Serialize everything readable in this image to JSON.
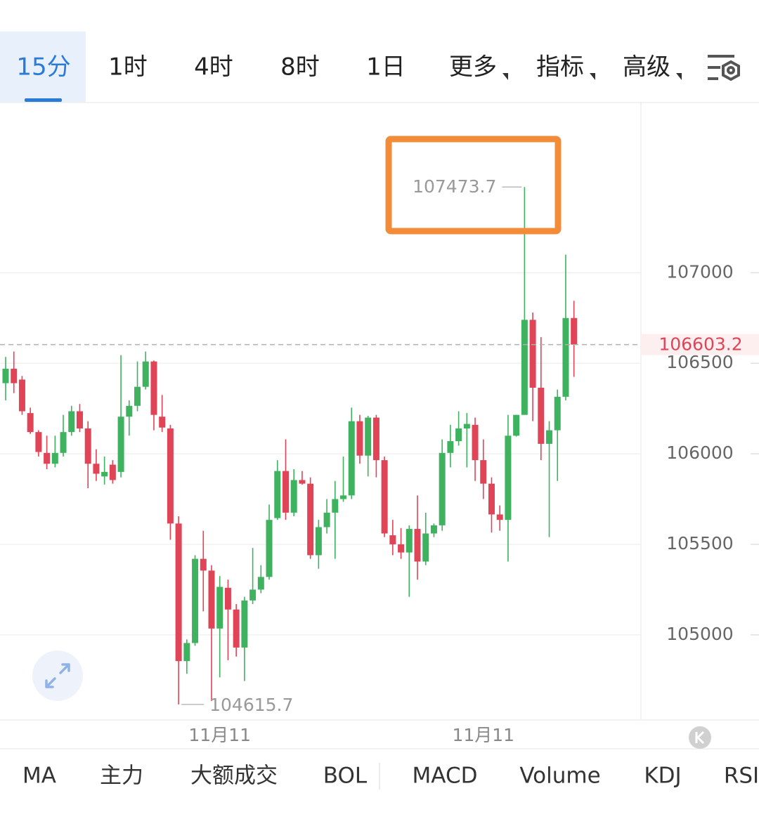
{
  "tabs": [
    "15分",
    "1时",
    "4时",
    "8时",
    "1日",
    "更多",
    "指标",
    "高级"
  ],
  "indicators": [
    "MA",
    "主力",
    "大额成交",
    "BOL",
    "MACD",
    "Volume",
    "KDJ",
    "RSI"
  ],
  "chart_data": {
    "type": "candlestick",
    "up_color": "#3eb25f",
    "down_color": "#e04457",
    "ylim": [
      104530,
      107940
    ],
    "yticks": [
      105000,
      105500,
      106000,
      106500,
      107000
    ],
    "grid": true,
    "categories": [
      null,
      null,
      null,
      null,
      null,
      null,
      null,
      null,
      null,
      null,
      null,
      null,
      null,
      null,
      null,
      null,
      null,
      null,
      null,
      null,
      null,
      null,
      null,
      null,
      null,
      null,
      "11月11",
      null,
      null,
      null,
      null,
      null,
      null,
      null,
      null,
      null,
      null,
      null,
      null,
      null,
      null,
      null,
      null,
      null,
      null,
      null,
      null,
      null,
      null,
      null,
      null,
      null,
      null,
      null,
      null,
      null,
      null,
      null,
      "11月11",
      null,
      null,
      null,
      null,
      null,
      null,
      null,
      null,
      null,
      null,
      null
    ],
    "open": [
      106390,
      106470,
      106410,
      106225,
      106120,
      106005,
      105945,
      106005,
      106120,
      106235,
      106140,
      105945,
      105875,
      105940,
      105900,
      106205,
      106265,
      106370,
      106510,
      106205,
      106140,
      105615,
      104855,
      104955,
      105420,
      105355,
      105035,
      105260,
      105140,
      104930,
      105190,
      105250,
      105320,
      105645,
      105905,
      105675,
      105855,
      105835,
      105440,
      105595,
      105675,
      105750,
      105770,
      106180,
      105990,
      106200,
      105965,
      105550,
      105500,
      105455,
      105585,
      105405,
      105560,
      105605,
      106005,
      106070,
      106140,
      106160,
      105965,
      105835,
      105665,
      105635,
      106100,
      106215,
      106740,
      106365,
      106055,
      106130,
      106315,
      106750
    ],
    "high": [
      106535,
      106565,
      106430,
      106255,
      106130,
      106100,
      106100,
      106215,
      106265,
      106275,
      106180,
      106025,
      105985,
      105965,
      106545,
      106295,
      106510,
      106565,
      106515,
      106325,
      106160,
      105655,
      104975,
      105440,
      105575,
      105385,
      105325,
      105305,
      105170,
      105210,
      105480,
      105385,
      105720,
      105965,
      106080,
      105915,
      105905,
      105870,
      105635,
      105750,
      105850,
      105985,
      106255,
      106215,
      106210,
      106215,
      105985,
      105635,
      105590,
      105605,
      105770,
      105675,
      105615,
      106080,
      106160,
      106235,
      106225,
      106200,
      106080,
      105870,
      105715,
      106215,
      106215,
      107473.7,
      106780,
      106645,
      106180,
      106355,
      107100,
      106845
    ],
    "low": [
      106295,
      106335,
      106215,
      106110,
      105985,
      105915,
      105925,
      105985,
      106100,
      106120,
      105810,
      105850,
      105830,
      105835,
      105870,
      106100,
      106235,
      106355,
      106130,
      106120,
      105525,
      104615.7,
      104785,
      104940,
      105130,
      104635,
      104765,
      104860,
      104880,
      104745,
      105170,
      105230,
      105305,
      105635,
      105635,
      105655,
      105830,
      105420,
      105365,
      105560,
      105420,
      105735,
      105750,
      105945,
      105875,
      105870,
      105540,
      105440,
      105420,
      105210,
      105305,
      105385,
      105540,
      105575,
      105925,
      106045,
      105925,
      105850,
      105750,
      105565,
      105575,
      105405,
      106095,
      106215,
      106180,
      105965,
      105540,
      105850,
      106295,
      106425
    ],
    "close": [
      106470,
      106390,
      106235,
      106120,
      106010,
      105945,
      106005,
      106120,
      106235,
      106140,
      105945,
      105890,
      105900,
      105855,
      106205,
      106265,
      106370,
      106510,
      106215,
      106145,
      105615,
      104855,
      104955,
      105420,
      105355,
      105035,
      105265,
      105140,
      104930,
      105190,
      105250,
      105320,
      105635,
      105905,
      105675,
      105855,
      105835,
      105440,
      105595,
      105675,
      105750,
      105770,
      106180,
      105990,
      106200,
      105965,
      105560,
      105500,
      105455,
      105585,
      105405,
      105560,
      105605,
      106005,
      106070,
      106140,
      106165,
      105965,
      105835,
      105665,
      105635,
      106100,
      106215,
      106740,
      106365,
      106055,
      106130,
      106315,
      106750,
      106603.2
    ]
  }
}
